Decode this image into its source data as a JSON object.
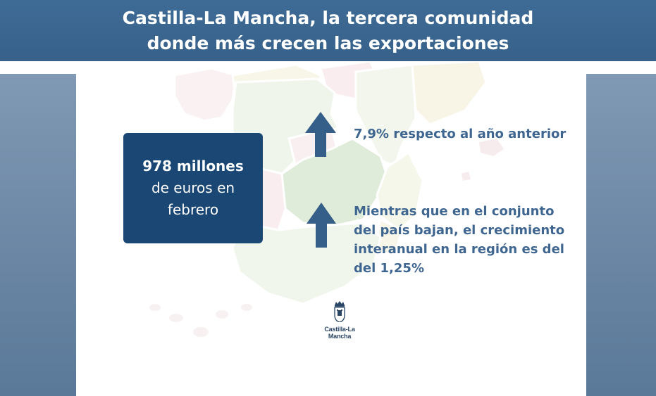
{
  "header": {
    "title_line1": "Castilla-La Mancha, la tercera comunidad",
    "title_line2": "donde más crecen las exportaciones"
  },
  "info_box": {
    "line1": "978 millones",
    "line2": "de euros en",
    "line3": "febrero"
  },
  "stats": {
    "growth_text": "7,9% respecto al año anterior",
    "interannual_line1": "Mientras que en el conjunto",
    "interannual_line2": "del país bajan, el crecimiento",
    "interannual_line3": "interanual en la región es del",
    "interannual_line4": "del 1,25%"
  },
  "logo": {
    "text": "Castilla-La Mancha",
    "icon": "crown-shield-icon"
  },
  "icons": {
    "arrow": "arrow-up-icon"
  },
  "colors": {
    "header_bg": "#3a6690",
    "box_bg": "#1a4774",
    "accent_text": "#3f6690",
    "arrow": "#355e88",
    "side_panels": "#7a93ae"
  }
}
